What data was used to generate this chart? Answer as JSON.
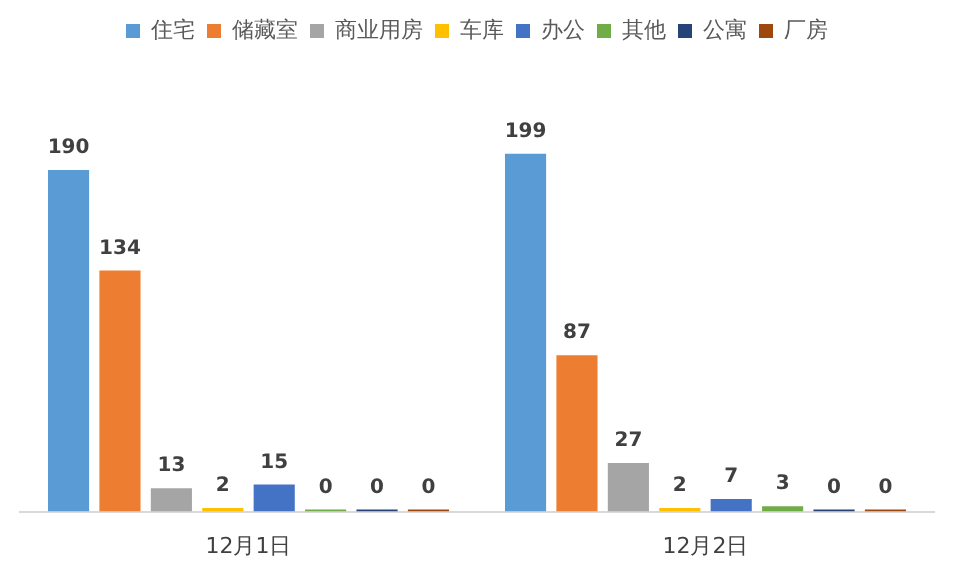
{
  "chart_data": {
    "type": "bar",
    "categories": [
      "12月1日",
      "12月2日"
    ],
    "series": [
      {
        "name": "住宅",
        "color": "#5b9bd5",
        "values": [
          190,
          199
        ]
      },
      {
        "name": "储藏室",
        "color": "#ed7d31",
        "values": [
          134,
          87
        ]
      },
      {
        "name": "商业用房",
        "color": "#a5a5a5",
        "values": [
          13,
          27
        ]
      },
      {
        "name": "车库",
        "color": "#ffc000",
        "values": [
          2,
          2
        ]
      },
      {
        "name": "办公",
        "color": "#4472c4",
        "values": [
          15,
          7
        ]
      },
      {
        "name": "其他",
        "color": "#70ad47",
        "values": [
          0,
          3
        ]
      },
      {
        "name": "公寓",
        "color": "#264478",
        "values": [
          0,
          0
        ]
      },
      {
        "name": "厂房",
        "color": "#9e480e",
        "values": [
          0,
          0
        ]
      }
    ],
    "data_labels": true,
    "legend": "top",
    "grid": false
  }
}
